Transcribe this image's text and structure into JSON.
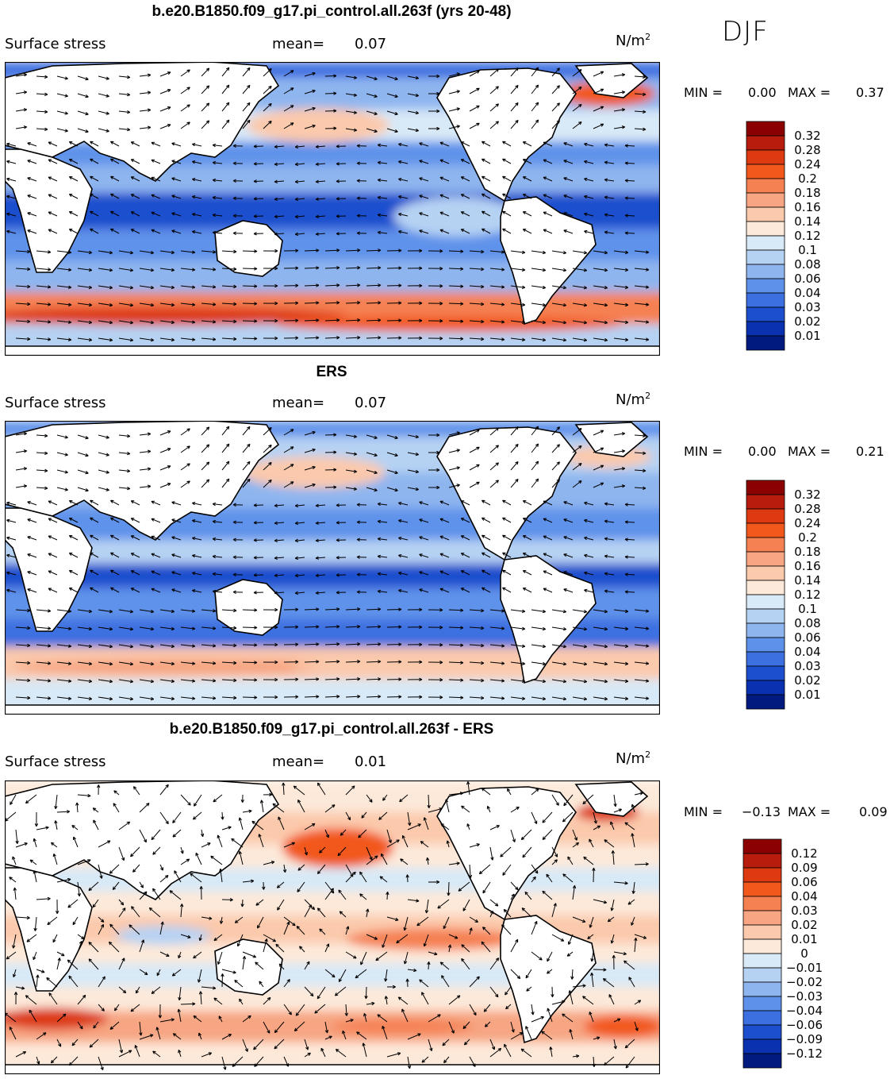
{
  "season": "DJF",
  "panels": [
    {
      "title": "b.e20.B1850.f09_g17.pi_control.all.263f (yrs 20-48)",
      "variable": "Surface stress",
      "mean_label": "mean=",
      "mean_value": "0.07",
      "units_base": "N/m",
      "units_exp": "2",
      "min_label": "MIN =",
      "min_value": "0.00",
      "max_label": "MAX =",
      "max_value": "0.37",
      "colorbar": {
        "labels": [
          "0.32",
          "0.28",
          "0.24",
          "0.2",
          "0.18",
          "0.16",
          "0.14",
          "0.12",
          "0.1",
          "0.08",
          "0.06",
          "0.04",
          "0.03",
          "0.02",
          "0.01"
        ],
        "colors": [
          "#8b0000",
          "#b81c0c",
          "#dd3a12",
          "#f2581b",
          "#f58152",
          "#f7a582",
          "#fbc9ac",
          "#fde9d9",
          "#d8e9f7",
          "#b6d2f3",
          "#8fb5ef",
          "#5e92ea",
          "#3c6fe0",
          "#1c4fce",
          "#0a32b0",
          "#001a80"
        ]
      }
    },
    {
      "title": "ERS",
      "variable": "Surface stress",
      "mean_label": "mean=",
      "mean_value": "0.07",
      "units_base": "N/m",
      "units_exp": "2",
      "min_label": "MIN =",
      "min_value": "0.00",
      "max_label": "MAX =",
      "max_value": "0.21",
      "colorbar": {
        "labels": [
          "0.32",
          "0.28",
          "0.24",
          "0.2",
          "0.18",
          "0.16",
          "0.14",
          "0.12",
          "0.1",
          "0.08",
          "0.06",
          "0.04",
          "0.03",
          "0.02",
          "0.01"
        ],
        "colors": [
          "#8b0000",
          "#b81c0c",
          "#dd3a12",
          "#f2581b",
          "#f58152",
          "#f7a582",
          "#fbc9ac",
          "#fde9d9",
          "#d8e9f7",
          "#b6d2f3",
          "#8fb5ef",
          "#5e92ea",
          "#3c6fe0",
          "#1c4fce",
          "#0a32b0",
          "#001a80"
        ]
      }
    },
    {
      "title": "b.e20.B1850.f09_g17.pi_control.all.263f - ERS",
      "variable": "Surface stress",
      "mean_label": "mean=",
      "mean_value": "0.01",
      "units_base": "N/m",
      "units_exp": "2",
      "min_label": "MIN =",
      "min_value": "−0.13",
      "max_label": "MAX =",
      "max_value": "0.09",
      "colorbar": {
        "labels": [
          "0.12",
          "0.09",
          "0.06",
          "0.04",
          "0.03",
          "0.02",
          "0.01",
          "0",
          "−0.01",
          "−0.02",
          "−0.03",
          "−0.04",
          "−0.06",
          "−0.09",
          "−0.12"
        ],
        "colors": [
          "#8b0000",
          "#b81c0c",
          "#dd3a12",
          "#f2581b",
          "#f58152",
          "#f7a582",
          "#fbc9ac",
          "#fde9d9",
          "#d8e9f7",
          "#b6d2f3",
          "#8fb5ef",
          "#5e92ea",
          "#3c6fe0",
          "#1c4fce",
          "#0a32b0",
          "#001a80"
        ]
      }
    }
  ],
  "chart_data": [
    {
      "type": "heatmap",
      "title": "b.e20.B1850.f09_g17.pi_control.all.263f (yrs 20-48)",
      "variable": "Surface stress",
      "units": "N/m2",
      "season": "DJF",
      "mean": 0.07,
      "min": 0.0,
      "max": 0.37,
      "contour_levels": [
        0.01,
        0.02,
        0.03,
        0.04,
        0.06,
        0.08,
        0.1,
        0.12,
        0.14,
        0.16,
        0.18,
        0.2,
        0.24,
        0.28,
        0.32
      ],
      "overlay": "wind stress vectors",
      "colorbar": "right"
    },
    {
      "type": "heatmap",
      "title": "ERS",
      "variable": "Surface stress",
      "units": "N/m2",
      "season": "DJF",
      "mean": 0.07,
      "min": 0.0,
      "max": 0.21,
      "contour_levels": [
        0.01,
        0.02,
        0.03,
        0.04,
        0.06,
        0.08,
        0.1,
        0.12,
        0.14,
        0.16,
        0.18,
        0.2,
        0.24,
        0.28,
        0.32
      ],
      "overlay": "wind stress vectors",
      "colorbar": "right"
    },
    {
      "type": "heatmap",
      "title": "b.e20.B1850.f09_g17.pi_control.all.263f - ERS",
      "variable": "Surface stress",
      "units": "N/m2",
      "season": "DJF",
      "mean": 0.01,
      "min": -0.13,
      "max": 0.09,
      "contour_levels": [
        -0.12,
        -0.09,
        -0.06,
        -0.04,
        -0.03,
        -0.02,
        -0.01,
        0,
        0.01,
        0.02,
        0.03,
        0.04,
        0.06,
        0.09,
        0.12
      ],
      "overlay": "wind stress difference vectors",
      "colorbar": "right"
    }
  ]
}
